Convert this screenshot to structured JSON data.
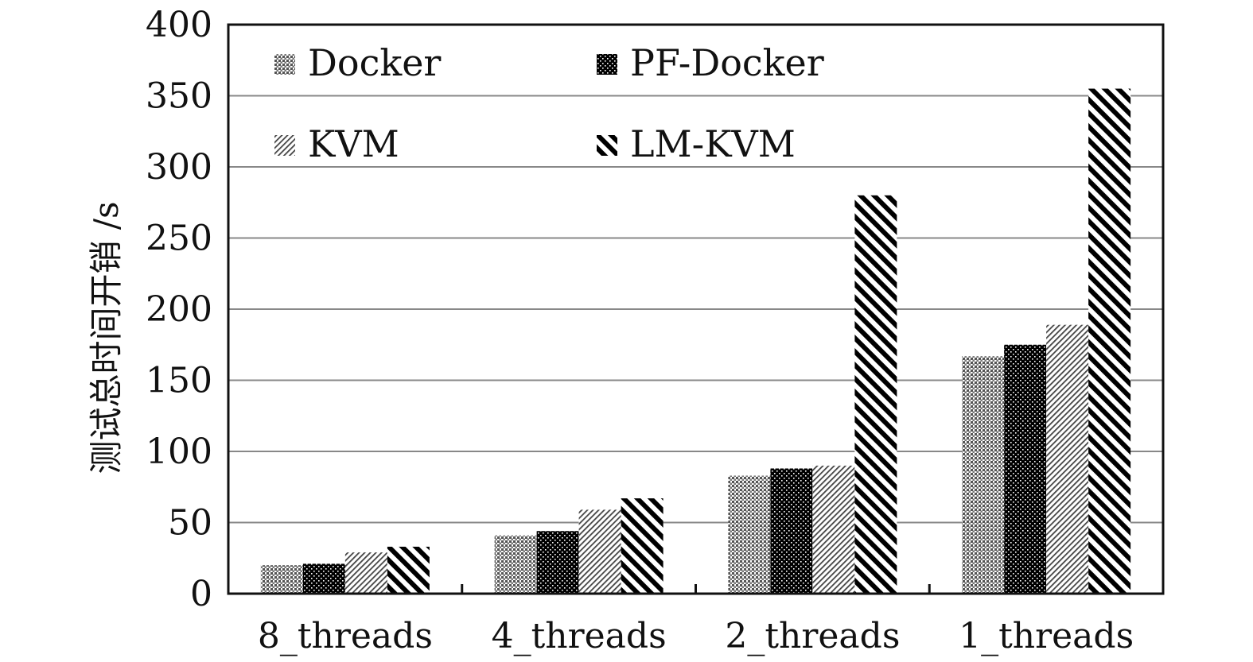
{
  "chart_data": {
    "type": "bar",
    "title": "",
    "xlabel": "",
    "ylabel": "测试总时间开销 /s",
    "ylim": [
      0,
      400
    ],
    "yticks": [
      0,
      50,
      100,
      150,
      200,
      250,
      300,
      350,
      400
    ],
    "grid": true,
    "legend_position": "top-left",
    "categories": [
      "8_threads",
      "4_threads",
      "2_threads",
      "1_threads"
    ],
    "series": [
      {
        "name": "Docker",
        "pattern": "dots-light",
        "values": [
          20,
          41,
          83,
          167
        ]
      },
      {
        "name": "PF-Docker",
        "pattern": "dots-dark",
        "values": [
          21,
          44,
          88,
          175
        ]
      },
      {
        "name": "KVM",
        "pattern": "hatch-fine",
        "values": [
          29,
          59,
          90,
          189
        ]
      },
      {
        "name": "LM-KVM",
        "pattern": "hatch-bold",
        "values": [
          33,
          67,
          280,
          355
        ]
      }
    ]
  }
}
